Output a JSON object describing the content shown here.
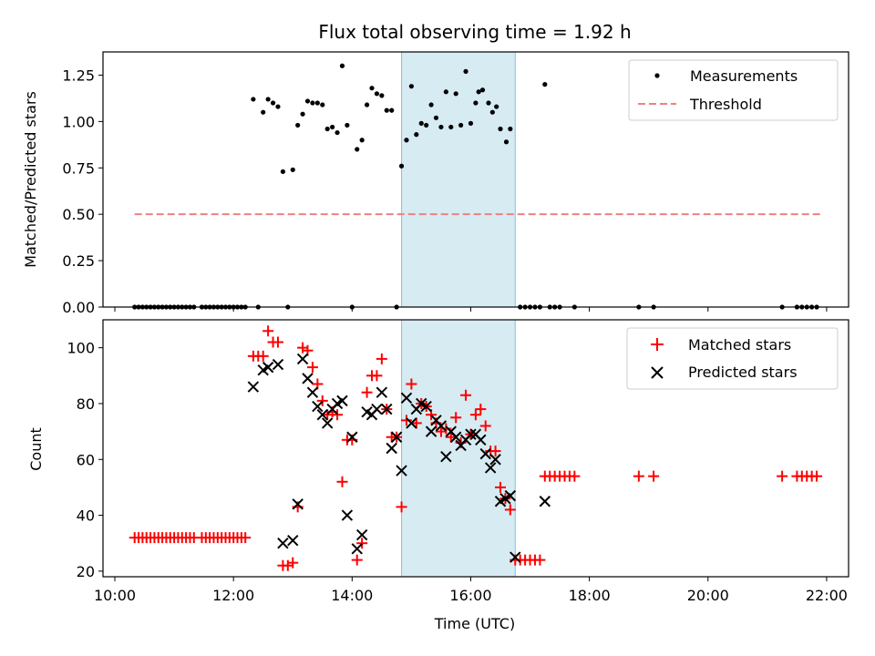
{
  "chart_data": [
    {
      "type": "scatter",
      "title": "Flux total observing time = 1.92 h",
      "xlabel": "",
      "ylabel": "Matched/Predicted stars",
      "xlim": [
        "10:00",
        "22:00"
      ],
      "ylim": [
        0,
        1.375
      ],
      "yticks": [
        "0.00",
        "0.25",
        "0.50",
        "0.75",
        "1.00",
        "1.25"
      ],
      "legend_position": "top-right",
      "shaded_interval": [
        "14:50",
        "16:45"
      ],
      "series": [
        {
          "name": "Measurements",
          "color": "#000000",
          "marker": "dot",
          "points": [
            [
              "10:20",
              0
            ],
            [
              "10:24",
              0
            ],
            [
              "10:28",
              0
            ],
            [
              "10:32",
              0
            ],
            [
              "10:36",
              0
            ],
            [
              "10:40",
              0
            ],
            [
              "10:44",
              0
            ],
            [
              "10:48",
              0
            ],
            [
              "10:52",
              0
            ],
            [
              "10:56",
              0
            ],
            [
              "11:00",
              0
            ],
            [
              "11:04",
              0
            ],
            [
              "11:08",
              0
            ],
            [
              "11:12",
              0
            ],
            [
              "11:16",
              0
            ],
            [
              "11:20",
              0
            ],
            [
              "11:28",
              0
            ],
            [
              "11:32",
              0
            ],
            [
              "11:36",
              0
            ],
            [
              "11:40",
              0
            ],
            [
              "11:44",
              0
            ],
            [
              "11:48",
              0
            ],
            [
              "11:52",
              0
            ],
            [
              "11:56",
              0
            ],
            [
              "12:00",
              0
            ],
            [
              "12:04",
              0
            ],
            [
              "12:08",
              0
            ],
            [
              "12:12",
              0
            ],
            [
              "12:25",
              0
            ],
            [
              "12:55",
              0
            ],
            [
              "14:00",
              0
            ],
            [
              "14:45",
              0
            ],
            [
              "16:50",
              0
            ],
            [
              "16:55",
              0
            ],
            [
              "17:00",
              0
            ],
            [
              "17:05",
              0
            ],
            [
              "17:10",
              0
            ],
            [
              "17:20",
              0
            ],
            [
              "17:25",
              0
            ],
            [
              "17:30",
              0
            ],
            [
              "17:45",
              0
            ],
            [
              "18:50",
              0
            ],
            [
              "19:05",
              0
            ],
            [
              "21:15",
              0
            ],
            [
              "21:30",
              0
            ],
            [
              "21:35",
              0
            ],
            [
              "21:40",
              0
            ],
            [
              "21:45",
              0
            ],
            [
              "21:50",
              0
            ],
            [
              "12:20",
              1.12
            ],
            [
              "12:30",
              1.05
            ],
            [
              "12:35",
              1.12
            ],
            [
              "12:40",
              1.1
            ],
            [
              "12:45",
              1.08
            ],
            [
              "12:50",
              0.73
            ],
            [
              "13:00",
              0.74
            ],
            [
              "13:05",
              0.98
            ],
            [
              "13:10",
              1.04
            ],
            [
              "13:15",
              1.11
            ],
            [
              "13:20",
              1.1
            ],
            [
              "13:25",
              1.1
            ],
            [
              "13:30",
              1.09
            ],
            [
              "13:35",
              0.96
            ],
            [
              "13:40",
              0.97
            ],
            [
              "13:45",
              0.94
            ],
            [
              "13:50",
              1.3
            ],
            [
              "13:55",
              0.98
            ],
            [
              "14:05",
              0.85
            ],
            [
              "14:10",
              0.9
            ],
            [
              "14:15",
              1.09
            ],
            [
              "14:20",
              1.18
            ],
            [
              "14:25",
              1.15
            ],
            [
              "14:30",
              1.14
            ],
            [
              "14:35",
              1.06
            ],
            [
              "14:40",
              1.06
            ],
            [
              "14:50",
              0.76
            ],
            [
              "14:55",
              0.9
            ],
            [
              "15:00",
              1.19
            ],
            [
              "15:05",
              0.93
            ],
            [
              "15:10",
              0.99
            ],
            [
              "15:15",
              0.98
            ],
            [
              "15:20",
              1.09
            ],
            [
              "15:25",
              1.02
            ],
            [
              "15:30",
              0.97
            ],
            [
              "15:35",
              1.16
            ],
            [
              "15:40",
              0.97
            ],
            [
              "15:45",
              1.15
            ],
            [
              "15:50",
              0.98
            ],
            [
              "15:55",
              1.27
            ],
            [
              "16:00",
              0.99
            ],
            [
              "16:05",
              1.1
            ],
            [
              "16:08",
              1.16
            ],
            [
              "16:12",
              1.17
            ],
            [
              "16:18",
              1.1
            ],
            [
              "16:22",
              1.05
            ],
            [
              "16:26",
              1.08
            ],
            [
              "16:30",
              0.96
            ],
            [
              "16:36",
              0.89
            ],
            [
              "16:40",
              0.96
            ],
            [
              "17:15",
              1.2
            ]
          ]
        },
        {
          "name": "Threshold",
          "color": "#f08080",
          "style": "dashed",
          "points": [
            [
              "10:20",
              0.5
            ],
            [
              "21:55",
              0.5
            ]
          ]
        }
      ]
    },
    {
      "type": "scatter",
      "title": "",
      "xlabel": "Time (UTC)",
      "ylabel": "Count",
      "xlim": [
        "10:00",
        "22:00"
      ],
      "ylim": [
        18,
        110
      ],
      "yticks": [
        "20",
        "40",
        "60",
        "80",
        "100"
      ],
      "xticks": [
        "10:00",
        "12:00",
        "14:00",
        "16:00",
        "18:00",
        "20:00",
        "22:00"
      ],
      "legend_position": "top-right",
      "shaded_interval": [
        "14:50",
        "16:45"
      ],
      "series": [
        {
          "name": "Matched stars",
          "color": "#ff0000",
          "marker": "plus",
          "points": [
            [
              "10:20",
              32
            ],
            [
              "10:24",
              32
            ],
            [
              "10:28",
              32
            ],
            [
              "10:32",
              32
            ],
            [
              "10:36",
              32
            ],
            [
              "10:40",
              32
            ],
            [
              "10:44",
              32
            ],
            [
              "10:48",
              32
            ],
            [
              "10:52",
              32
            ],
            [
              "10:56",
              32
            ],
            [
              "11:00",
              32
            ],
            [
              "11:04",
              32
            ],
            [
              "11:08",
              32
            ],
            [
              "11:12",
              32
            ],
            [
              "11:16",
              32
            ],
            [
              "11:20",
              32
            ],
            [
              "11:28",
              32
            ],
            [
              "11:32",
              32
            ],
            [
              "11:36",
              32
            ],
            [
              "11:40",
              32
            ],
            [
              "11:44",
              32
            ],
            [
              "11:48",
              32
            ],
            [
              "11:52",
              32
            ],
            [
              "11:56",
              32
            ],
            [
              "12:00",
              32
            ],
            [
              "12:04",
              32
            ],
            [
              "12:08",
              32
            ],
            [
              "12:12",
              32
            ],
            [
              "12:20",
              97
            ],
            [
              "12:25",
              97
            ],
            [
              "12:30",
              97
            ],
            [
              "12:35",
              106
            ],
            [
              "12:40",
              102
            ],
            [
              "12:45",
              102
            ],
            [
              "12:50",
              22
            ],
            [
              "12:55",
              22
            ],
            [
              "13:00",
              23
            ],
            [
              "13:05",
              43
            ],
            [
              "13:10",
              100
            ],
            [
              "13:15",
              99
            ],
            [
              "13:20",
              93
            ],
            [
              "13:25",
              87
            ],
            [
              "13:30",
              81
            ],
            [
              "13:35",
              76
            ],
            [
              "13:40",
              77
            ],
            [
              "13:45",
              76
            ],
            [
              "13:50",
              52
            ],
            [
              "13:55",
              67
            ],
            [
              "14:00",
              67
            ],
            [
              "14:05",
              24
            ],
            [
              "14:10",
              30
            ],
            [
              "14:15",
              84
            ],
            [
              "14:20",
              90
            ],
            [
              "14:25",
              90
            ],
            [
              "14:30",
              96
            ],
            [
              "14:35",
              78
            ],
            [
              "14:40",
              68
            ],
            [
              "14:45",
              68
            ],
            [
              "14:50",
              43
            ],
            [
              "14:55",
              74
            ],
            [
              "15:00",
              87
            ],
            [
              "15:05",
              73
            ],
            [
              "15:10",
              80
            ],
            [
              "15:15",
              79
            ],
            [
              "15:20",
              76
            ],
            [
              "15:25",
              73
            ],
            [
              "15:30",
              70
            ],
            [
              "15:35",
              71
            ],
            [
              "15:40",
              68
            ],
            [
              "15:45",
              75
            ],
            [
              "15:50",
              66
            ],
            [
              "15:55",
              83
            ],
            [
              "16:00",
              69
            ],
            [
              "16:05",
              76
            ],
            [
              "16:10",
              78
            ],
            [
              "16:15",
              72
            ],
            [
              "16:20",
              63
            ],
            [
              "16:25",
              63
            ],
            [
              "16:30",
              50
            ],
            [
              "16:35",
              46
            ],
            [
              "16:40",
              42
            ],
            [
              "16:45",
              24
            ],
            [
              "16:50",
              24
            ],
            [
              "16:55",
              24
            ],
            [
              "17:00",
              24
            ],
            [
              "17:05",
              24
            ],
            [
              "17:10",
              24
            ],
            [
              "17:15",
              54
            ],
            [
              "17:20",
              54
            ],
            [
              "17:25",
              54
            ],
            [
              "17:30",
              54
            ],
            [
              "17:35",
              54
            ],
            [
              "17:40",
              54
            ],
            [
              "17:45",
              54
            ],
            [
              "18:50",
              54
            ],
            [
              "19:05",
              54
            ],
            [
              "21:15",
              54
            ],
            [
              "21:30",
              54
            ],
            [
              "21:35",
              54
            ],
            [
              "21:40",
              54
            ],
            [
              "21:45",
              54
            ],
            [
              "21:50",
              54
            ]
          ]
        },
        {
          "name": "Predicted stars",
          "color": "#000000",
          "marker": "x",
          "points": [
            [
              "12:20",
              86
            ],
            [
              "12:30",
              92
            ],
            [
              "12:35",
              93
            ],
            [
              "12:45",
              94
            ],
            [
              "12:50",
              30
            ],
            [
              "13:00",
              31
            ],
            [
              "13:05",
              44
            ],
            [
              "13:10",
              96
            ],
            [
              "13:15",
              89
            ],
            [
              "13:20",
              84
            ],
            [
              "13:25",
              79
            ],
            [
              "13:30",
              76
            ],
            [
              "13:35",
              73
            ],
            [
              "13:40",
              78
            ],
            [
              "13:45",
              80
            ],
            [
              "13:50",
              81
            ],
            [
              "13:55",
              40
            ],
            [
              "14:00",
              68
            ],
            [
              "14:05",
              28
            ],
            [
              "14:10",
              33
            ],
            [
              "14:15",
              77
            ],
            [
              "14:20",
              76
            ],
            [
              "14:25",
              78
            ],
            [
              "14:30",
              84
            ],
            [
              "14:35",
              78
            ],
            [
              "14:40",
              64
            ],
            [
              "14:45",
              68
            ],
            [
              "14:50",
              56
            ],
            [
              "14:55",
              82
            ],
            [
              "15:00",
              73
            ],
            [
              "15:05",
              78
            ],
            [
              "15:10",
              80
            ],
            [
              "15:15",
              79
            ],
            [
              "15:20",
              70
            ],
            [
              "15:25",
              74
            ],
            [
              "15:30",
              72
            ],
            [
              "15:35",
              61
            ],
            [
              "15:40",
              70
            ],
            [
              "15:45",
              68
            ],
            [
              "15:50",
              65
            ],
            [
              "15:55",
              67
            ],
            [
              "16:00",
              69
            ],
            [
              "16:05",
              69
            ],
            [
              "16:10",
              67
            ],
            [
              "16:15",
              62
            ],
            [
              "16:20",
              57
            ],
            [
              "16:25",
              60
            ],
            [
              "16:30",
              45
            ],
            [
              "16:35",
              46
            ],
            [
              "16:40",
              47
            ],
            [
              "16:45",
              25
            ],
            [
              "17:15",
              45
            ]
          ]
        }
      ]
    }
  ]
}
